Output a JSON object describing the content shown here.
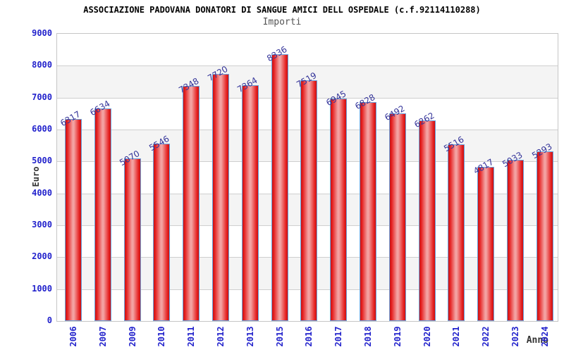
{
  "header": {
    "title": "ASSOCIAZIONE PADOVANA DONATORI DI SANGUE AMICI DELL OSPEDALE (c.f.92114110288)",
    "subtitle": "Importi"
  },
  "chart_data": {
    "type": "bar",
    "title": "ASSOCIAZIONE PADOVANA DONATORI DI SANGUE AMICI DELL OSPEDALE (c.f.92114110288)",
    "subtitle": "Importi",
    "xlabel": "Anno",
    "ylabel": "Euro",
    "categories": [
      "2006",
      "2007",
      "2009",
      "2010",
      "2011",
      "2012",
      "2013",
      "2015",
      "2016",
      "2017",
      "2018",
      "2019",
      "2020",
      "2021",
      "2022",
      "2023",
      "2024"
    ],
    "values": [
      6317,
      6634,
      5070,
      5546,
      7348,
      7720,
      7364,
      8336,
      7519,
      6945,
      6828,
      6492,
      6262,
      5516,
      4817,
      5033,
      5293
    ],
    "ylim": [
      0,
      9000
    ],
    "ytick_step": 1000,
    "yticks": [
      0,
      1000,
      2000,
      3000,
      4000,
      5000,
      6000,
      7000,
      8000,
      9000
    ],
    "grid": true,
    "legend": "none",
    "bar_value_labels": true,
    "colors": {
      "bar_edge": "#c81212",
      "bar_highlight": "#f3a2a2",
      "bar_border": "#6ba3dd",
      "value_label": "#333399",
      "axis_tick_label": "#2222cc",
      "band": "#f4f4f4",
      "gridline": "#cfcfcf",
      "plot_border": "#c6c6c6",
      "title": "#000000",
      "subtitle": "#555555",
      "axis_title": "#333333"
    }
  }
}
